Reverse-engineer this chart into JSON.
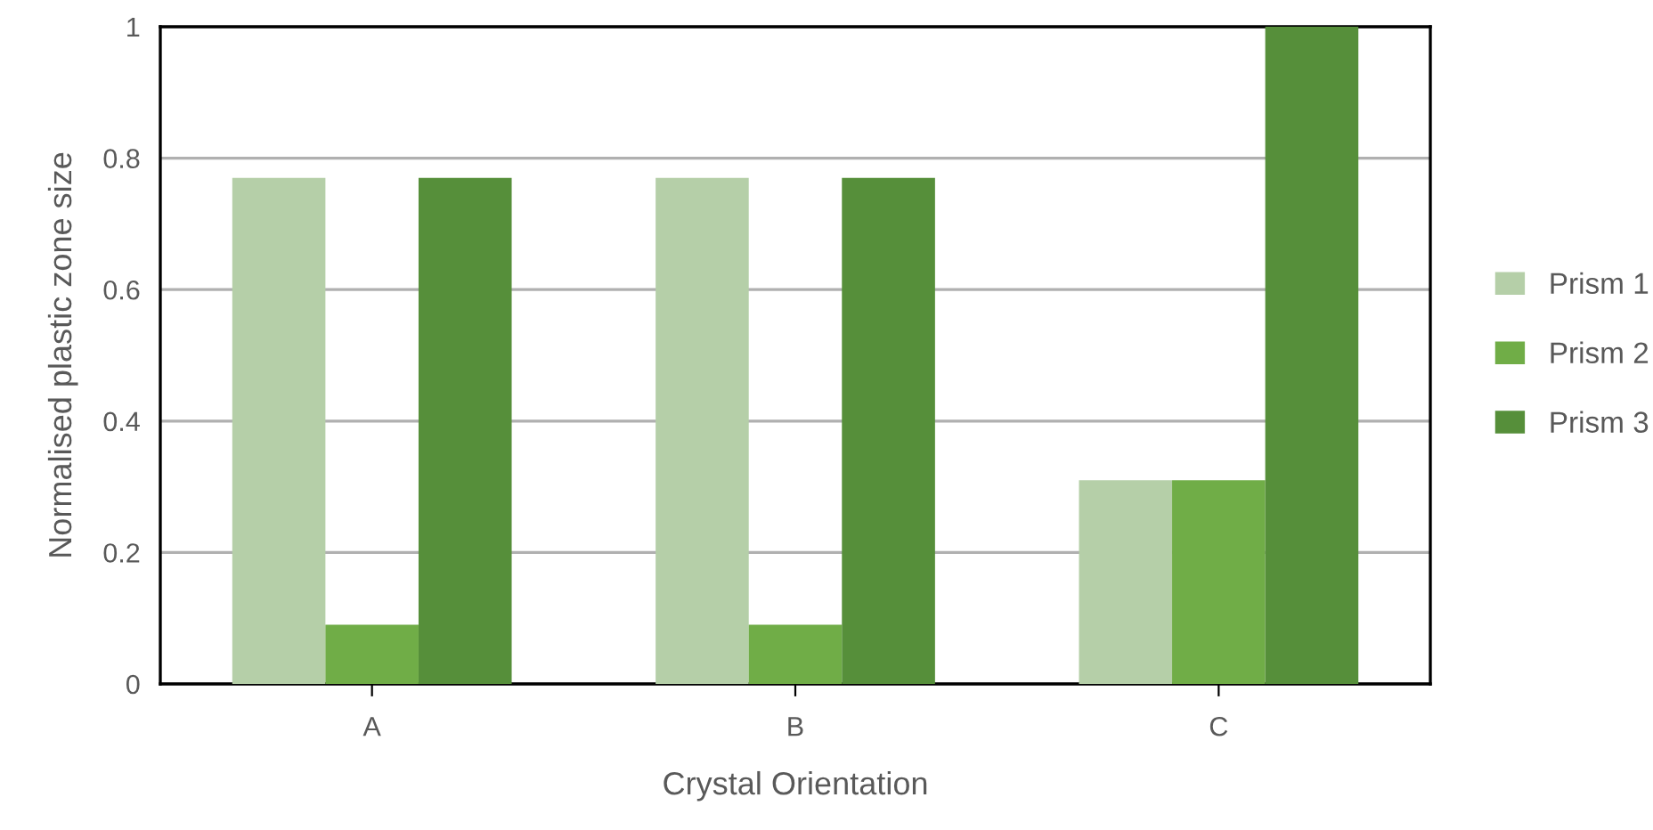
{
  "chart_data": {
    "type": "bar",
    "xlabel": "Crystal Orientation",
    "ylabel": "Normalised plastic zone size",
    "categories": [
      "A",
      "B",
      "C"
    ],
    "series": [
      {
        "name": "Prism 1",
        "color": "#b5cfa8",
        "values": [
          0.77,
          0.77,
          0.31
        ]
      },
      {
        "name": "Prism 2",
        "color": "#70ad47",
        "values": [
          0.09,
          0.09,
          0.31
        ]
      },
      {
        "name": "Prism 3",
        "color": "#568f3a",
        "values": [
          0.77,
          0.77,
          1.0
        ]
      }
    ],
    "ylim": [
      0,
      1
    ],
    "yticks": [
      0,
      0.2,
      0.4,
      0.6,
      0.8,
      1
    ],
    "grid": "y",
    "legend": "right"
  }
}
